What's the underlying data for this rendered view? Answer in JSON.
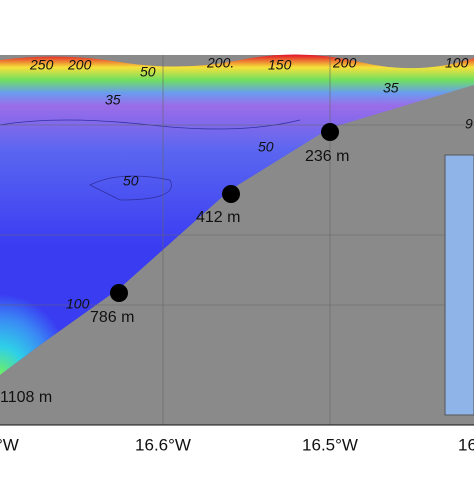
{
  "contour_labels": [
    "250",
    "200",
    "50",
    "200.",
    "150",
    "200",
    "100",
    "35",
    "35",
    "50",
    "50",
    "9",
    "100"
  ],
  "stations": [
    {
      "label": "236 m"
    },
    {
      "label": "412 m"
    },
    {
      "label": "786 m"
    },
    {
      "label": "1108 m"
    }
  ],
  "x_axis_labels": [
    "°W",
    "16.6°W",
    "16.5°W",
    "16"
  ]
}
